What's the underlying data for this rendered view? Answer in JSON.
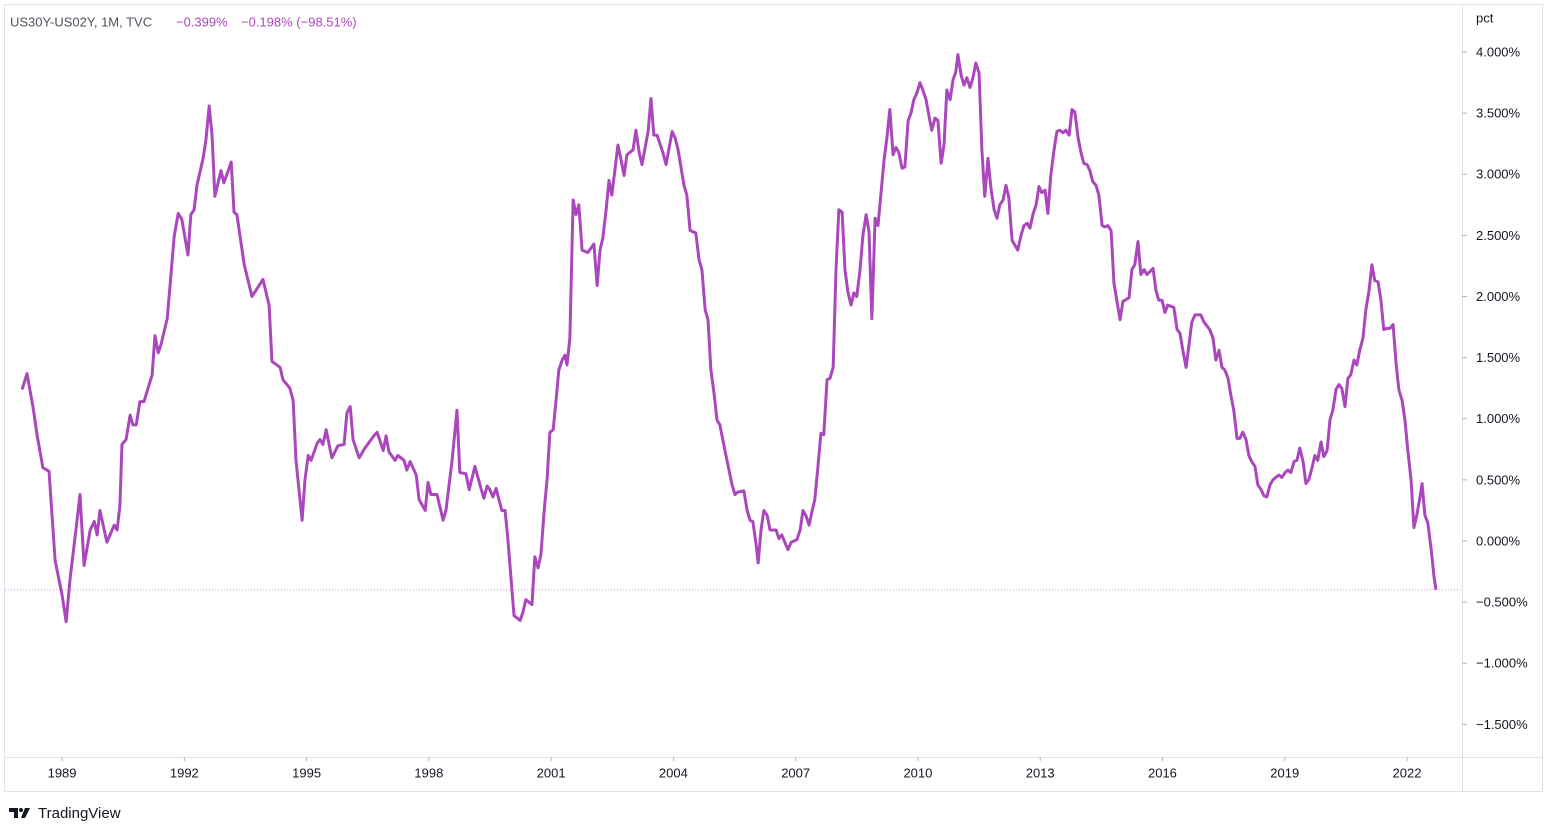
{
  "chart_data": {
    "type": "line",
    "title": "US30Y-US02Y, 1M, TVC",
    "legend_values": [
      "−0.399%",
      "−0.198% (−98.51%)"
    ],
    "y_axis_label": "pct",
    "color": "#ab47bc",
    "x": [
      1988.02,
      1988.14,
      1988.29,
      1988.39,
      1988.53,
      1988.68,
      1988.83,
      1989.0,
      1989.1,
      1989.2,
      1989.34,
      1989.44,
      1989.54,
      1989.69,
      1989.79,
      1989.86,
      1989.93,
      1990.1,
      1990.28,
      1990.35,
      1990.42,
      1990.47,
      1990.57,
      1990.67,
      1990.74,
      1990.82,
      1990.91,
      1991.01,
      1991.21,
      1991.28,
      1991.36,
      1991.43,
      1991.58,
      1991.65,
      1991.75,
      1991.85,
      1991.94,
      1992.09,
      1992.16,
      1992.24,
      1992.31,
      1992.46,
      1992.53,
      1992.61,
      1992.68,
      1992.75,
      1992.9,
      1992.97,
      1993.15,
      1993.22,
      1993.29,
      1993.47,
      1993.66,
      1993.93,
      1994.08,
      1994.15,
      1994.35,
      1994.42,
      1994.59,
      1994.67,
      1994.74,
      1994.89,
      1994.96,
      1995.04,
      1995.11,
      1995.26,
      1995.33,
      1995.4,
      1995.48,
      1995.62,
      1995.77,
      1995.92,
      1995.99,
      1996.07,
      1996.14,
      1996.29,
      1996.43,
      1996.65,
      1996.73,
      1996.88,
      1996.95,
      1997.02,
      1997.17,
      1997.24,
      1997.39,
      1997.46,
      1997.54,
      1997.69,
      1997.76,
      1997.91,
      1997.98,
      1998.05,
      1998.2,
      1998.35,
      1998.42,
      1998.57,
      1998.69,
      1998.76,
      1998.91,
      1998.99,
      1999.13,
      1999.28,
      1999.35,
      1999.43,
      1999.5,
      1999.57,
      1999.65,
      1999.79,
      1999.87,
      1999.94,
      2000.02,
      2000.09,
      2000.24,
      2000.31,
      2000.38,
      2000.53,
      2000.6,
      2000.68,
      2000.75,
      2000.83,
      2000.9,
      2000.97,
      2001.05,
      2001.12,
      2001.19,
      2001.27,
      2001.34,
      2001.39,
      2001.46,
      2001.54,
      2001.61,
      2001.68,
      2001.76,
      2001.9,
      2002.05,
      2002.13,
      2002.2,
      2002.27,
      2002.35,
      2002.42,
      2002.49,
      2002.64,
      2002.71,
      2002.79,
      2002.86,
      2003.01,
      2003.08,
      2003.16,
      2003.23,
      2003.38,
      2003.45,
      2003.52,
      2003.6,
      2003.74,
      2003.82,
      2003.97,
      2004.04,
      2004.11,
      2004.26,
      2004.33,
      2004.41,
      2004.55,
      2004.63,
      2004.7,
      2004.78,
      2004.85,
      2004.92,
      2005.0,
      2005.07,
      2005.14,
      2005.29,
      2005.44,
      2005.51,
      2005.58,
      2005.73,
      2005.81,
      2005.88,
      2005.95,
      2006.03,
      2006.08,
      2006.15,
      2006.22,
      2006.3,
      2006.37,
      2006.52,
      2006.59,
      2006.66,
      2006.81,
      2006.89,
      2007.03,
      2007.11,
      2007.18,
      2007.25,
      2007.33,
      2007.4,
      2007.47,
      2007.55,
      2007.62,
      2007.69,
      2007.77,
      2007.84,
      2007.92,
      2007.99,
      2008.06,
      2008.14,
      2008.21,
      2008.28,
      2008.36,
      2008.43,
      2008.5,
      2008.58,
      2008.65,
      2008.73,
      2008.8,
      2008.87,
      2008.95,
      2009.02,
      2009.09,
      2009.17,
      2009.24,
      2009.31,
      2009.39,
      2009.46,
      2009.53,
      2009.61,
      2009.68,
      2009.76,
      2009.83,
      2009.9,
      2009.98,
      2010.05,
      2010.12,
      2010.2,
      2010.27,
      2010.34,
      2010.42,
      2010.49,
      2010.57,
      2010.64,
      2010.71,
      2010.79,
      2010.86,
      2010.93,
      2010.98,
      2011.06,
      2011.13,
      2011.2,
      2011.28,
      2011.35,
      2011.42,
      2011.5,
      2011.57,
      2011.64,
      2011.72,
      2011.79,
      2011.87,
      2011.94,
      2012.01,
      2012.09,
      2012.16,
      2012.23,
      2012.31,
      2012.38,
      2012.45,
      2012.53,
      2012.6,
      2012.68,
      2012.75,
      2012.82,
      2012.9,
      2012.97,
      2013.04,
      2013.12,
      2013.19,
      2013.26,
      2013.34,
      2013.41,
      2013.48,
      2013.56,
      2013.63,
      2013.71,
      2013.78,
      2013.85,
      2013.93,
      2014.0,
      2014.07,
      2014.15,
      2014.22,
      2014.29,
      2014.37,
      2014.44,
      2014.52,
      2014.59,
      2014.66,
      2014.74,
      2014.81,
      2014.88,
      2014.96,
      2015.03,
      2015.18,
      2015.25,
      2015.32,
      2015.4,
      2015.47,
      2015.55,
      2015.62,
      2015.77,
      2015.84,
      2015.91,
      2015.99,
      2016.06,
      2016.13,
      2016.28,
      2016.36,
      2016.43,
      2016.5,
      2016.58,
      2016.65,
      2016.72,
      2016.8,
      2016.94,
      2017.02,
      2017.16,
      2017.24,
      2017.31,
      2017.39,
      2017.46,
      2017.53,
      2017.61,
      2017.68,
      2017.75,
      2017.83,
      2017.9,
      2017.97,
      2018.05,
      2018.12,
      2018.19,
      2018.27,
      2018.34,
      2018.42,
      2018.49,
      2018.56,
      2018.64,
      2018.71,
      2018.78,
      2018.86,
      2018.93,
      2019.01,
      2019.08,
      2019.15,
      2019.23,
      2019.3,
      2019.37,
      2019.45,
      2019.52,
      2019.59,
      2019.67,
      2019.74,
      2019.81,
      2019.89,
      2019.96,
      2020.04,
      2020.11,
      2020.18,
      2020.26,
      2020.33,
      2020.4,
      2020.48,
      2020.55,
      2020.62,
      2020.7,
      2020.77,
      2020.84,
      2020.92,
      2020.99,
      2021.07,
      2021.14,
      2021.21,
      2021.29,
      2021.36,
      2021.43,
      2021.51,
      2021.58,
      2021.66,
      2021.73,
      2021.8,
      2021.88,
      2021.95,
      2022.02,
      2022.1,
      2022.17,
      2022.24,
      2022.32,
      2022.37,
      2022.44,
      2022.51,
      2022.59,
      2022.66,
      2022.71
    ],
    "values": [
      1.24,
      1.37,
      1.09,
      0.86,
      0.6,
      0.57,
      -0.16,
      -0.44,
      -0.66,
      -0.3,
      0.09,
      0.38,
      -0.2,
      0.09,
      0.16,
      0.05,
      0.25,
      -0.01,
      0.13,
      0.09,
      0.29,
      0.79,
      0.83,
      1.03,
      0.95,
      0.95,
      1.14,
      1.14,
      1.36,
      1.68,
      1.54,
      1.61,
      1.82,
      2.09,
      2.49,
      2.68,
      2.63,
      2.34,
      2.67,
      2.71,
      2.91,
      3.13,
      3.28,
      3.56,
      3.32,
      2.82,
      3.03,
      2.93,
      3.1,
      2.69,
      2.67,
      2.26,
      2.0,
      2.14,
      1.93,
      1.47,
      1.42,
      1.32,
      1.25,
      1.15,
      0.66,
      0.17,
      0.5,
      0.7,
      0.66,
      0.8,
      0.83,
      0.79,
      0.91,
      0.68,
      0.78,
      0.79,
      1.05,
      1.1,
      0.83,
      0.68,
      0.76,
      0.86,
      0.89,
      0.74,
      0.86,
      0.73,
      0.66,
      0.7,
      0.66,
      0.58,
      0.65,
      0.54,
      0.34,
      0.25,
      0.48,
      0.38,
      0.38,
      0.17,
      0.25,
      0.66,
      1.07,
      0.56,
      0.55,
      0.42,
      0.61,
      0.43,
      0.35,
      0.45,
      0.42,
      0.36,
      0.43,
      0.25,
      0.25,
      0.01,
      -0.32,
      -0.61,
      -0.65,
      -0.58,
      -0.48,
      -0.52,
      -0.13,
      -0.22,
      -0.11,
      0.25,
      0.5,
      0.89,
      0.91,
      1.15,
      1.4,
      1.48,
      1.52,
      1.44,
      1.66,
      2.79,
      2.67,
      2.75,
      2.38,
      2.36,
      2.43,
      2.09,
      2.38,
      2.48,
      2.71,
      2.95,
      2.83,
      3.24,
      3.13,
      2.99,
      3.16,
      3.2,
      3.36,
      3.18,
      3.08,
      3.35,
      3.62,
      3.32,
      3.32,
      3.18,
      3.08,
      3.35,
      3.3,
      3.21,
      2.91,
      2.83,
      2.54,
      2.52,
      2.3,
      2.22,
      1.89,
      1.81,
      1.4,
      1.2,
      0.99,
      0.95,
      0.7,
      0.46,
      0.38,
      0.4,
      0.41,
      0.25,
      0.17,
      0.16,
      -0.03,
      -0.18,
      0.09,
      0.25,
      0.21,
      0.09,
      0.09,
      0.02,
      0.05,
      -0.07,
      -0.01,
      0.01,
      0.09,
      0.25,
      0.21,
      0.13,
      0.24,
      0.34,
      0.62,
      0.88,
      0.87,
      1.32,
      1.33,
      1.42,
      2.22,
      2.71,
      2.69,
      2.22,
      2.04,
      1.93,
      2.03,
      2.0,
      2.22,
      2.5,
      2.67,
      2.53,
      1.82,
      2.64,
      2.58,
      2.83,
      3.12,
      3.3,
      3.53,
      3.16,
      3.22,
      3.18,
      3.05,
      3.06,
      3.44,
      3.5,
      3.61,
      3.67,
      3.75,
      3.69,
      3.61,
      3.48,
      3.36,
      3.46,
      3.44,
      3.09,
      3.24,
      3.69,
      3.61,
      3.77,
      3.84,
      3.98,
      3.81,
      3.73,
      3.79,
      3.71,
      3.79,
      3.91,
      3.83,
      3.2,
      2.82,
      3.13,
      2.89,
      2.71,
      2.64,
      2.75,
      2.79,
      2.91,
      2.81,
      2.46,
      2.42,
      2.38,
      2.5,
      2.58,
      2.6,
      2.56,
      2.67,
      2.75,
      2.9,
      2.85,
      2.87,
      2.68,
      2.99,
      3.2,
      3.35,
      3.36,
      3.34,
      3.36,
      3.32,
      3.53,
      3.51,
      3.3,
      3.18,
      3.09,
      3.08,
      3.03,
      2.94,
      2.91,
      2.83,
      2.58,
      2.57,
      2.58,
      2.54,
      2.11,
      1.97,
      1.81,
      1.96,
      1.99,
      2.22,
      2.26,
      2.45,
      2.18,
      2.22,
      2.18,
      2.23,
      2.05,
      1.97,
      1.97,
      1.87,
      1.93,
      1.91,
      1.73,
      1.7,
      1.56,
      1.42,
      1.6,
      1.79,
      1.85,
      1.85,
      1.79,
      1.73,
      1.66,
      1.48,
      1.56,
      1.42,
      1.4,
      1.33,
      1.19,
      1.07,
      0.84,
      0.84,
      0.89,
      0.83,
      0.7,
      0.65,
      0.61,
      0.46,
      0.42,
      0.37,
      0.36,
      0.46,
      0.5,
      0.52,
      0.54,
      0.52,
      0.56,
      0.58,
      0.56,
      0.65,
      0.66,
      0.76,
      0.65,
      0.47,
      0.5,
      0.6,
      0.7,
      0.66,
      0.81,
      0.69,
      0.74,
      0.99,
      1.07,
      1.24,
      1.28,
      1.25,
      1.1,
      1.33,
      1.36,
      1.48,
      1.44,
      1.56,
      1.66,
      1.89,
      2.05,
      2.26,
      2.13,
      2.12,
      1.97,
      1.73,
      1.74,
      1.74,
      1.77,
      1.46,
      1.24,
      1.15,
      0.99,
      0.74,
      0.5,
      0.11,
      0.21,
      0.36,
      0.47,
      0.21,
      0.15,
      -0.06,
      -0.28,
      -0.399
    ],
    "xlim": [
      1987.6,
      2023.35
    ],
    "xticks": [
      1989,
      1992,
      1995,
      1998,
      2001,
      2004,
      2007,
      2010,
      2013,
      2016,
      2019,
      2022
    ],
    "ylim": [
      -1.767,
      4.385
    ],
    "yticks": [
      {
        "value": 4,
        "label": "4.000%"
      },
      {
        "value": 3.5,
        "label": "3.500%"
      },
      {
        "value": 3,
        "label": "3.000%"
      },
      {
        "value": 2.5,
        "label": "2.500%"
      },
      {
        "value": 2,
        "label": "2.000%"
      },
      {
        "value": 1.5,
        "label": "1.500%"
      },
      {
        "value": 1,
        "label": "1.000%"
      },
      {
        "value": 0.5,
        "label": "0.500%"
      },
      {
        "value": 0,
        "label": "0.000%"
      },
      {
        "value": -0.5,
        "label": "−0.500%"
      },
      {
        "value": -1,
        "label": "−1.000%"
      },
      {
        "value": -1.5,
        "label": "−1.500%"
      }
    ],
    "grid": false
  },
  "footer": {
    "brand": "TradingView"
  }
}
